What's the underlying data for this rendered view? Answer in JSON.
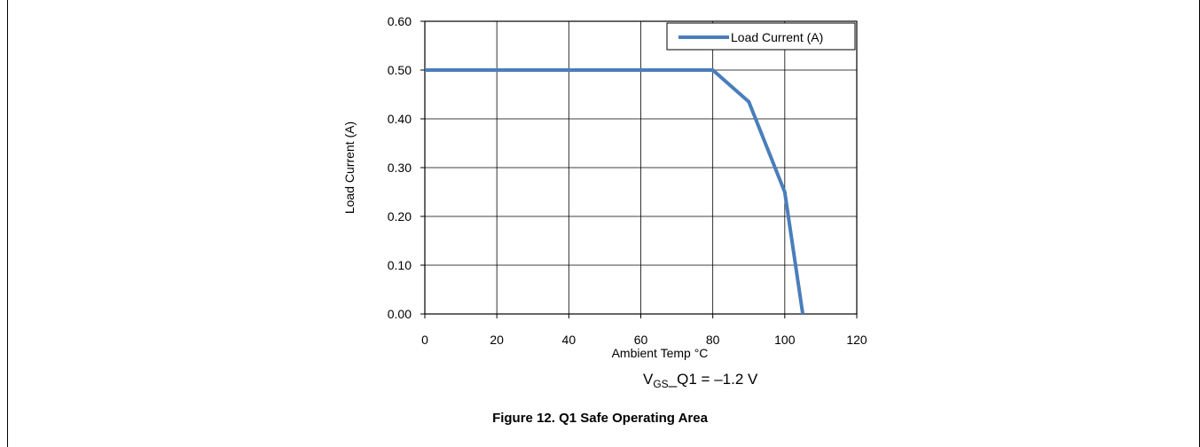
{
  "chart_data": {
    "type": "line",
    "xlabel": "Ambient Temp °C",
    "ylabel": "Load Current (A)",
    "xlim": [
      0,
      120
    ],
    "ylim": [
      0,
      0.6
    ],
    "x_ticks": [
      "0",
      "20",
      "40",
      "60",
      "80",
      "100",
      "120"
    ],
    "y_ticks": [
      "0.00",
      "0.10",
      "0.20",
      "0.30",
      "0.40",
      "0.50",
      "0.60"
    ],
    "grid": true,
    "legend_position": "top-right",
    "series": [
      {
        "name": "Load Current (A)",
        "color": "#4a7ebb",
        "x": [
          0,
          80,
          90,
          100,
          105
        ],
        "y": [
          0.5,
          0.5,
          0.435,
          0.25,
          0.0
        ]
      }
    ]
  },
  "annotation": {
    "main": "V",
    "subscript": "GS",
    "rest": "_Q1 = –1.2 V"
  },
  "caption": "Figure 12. Q1 Safe Operating Area"
}
